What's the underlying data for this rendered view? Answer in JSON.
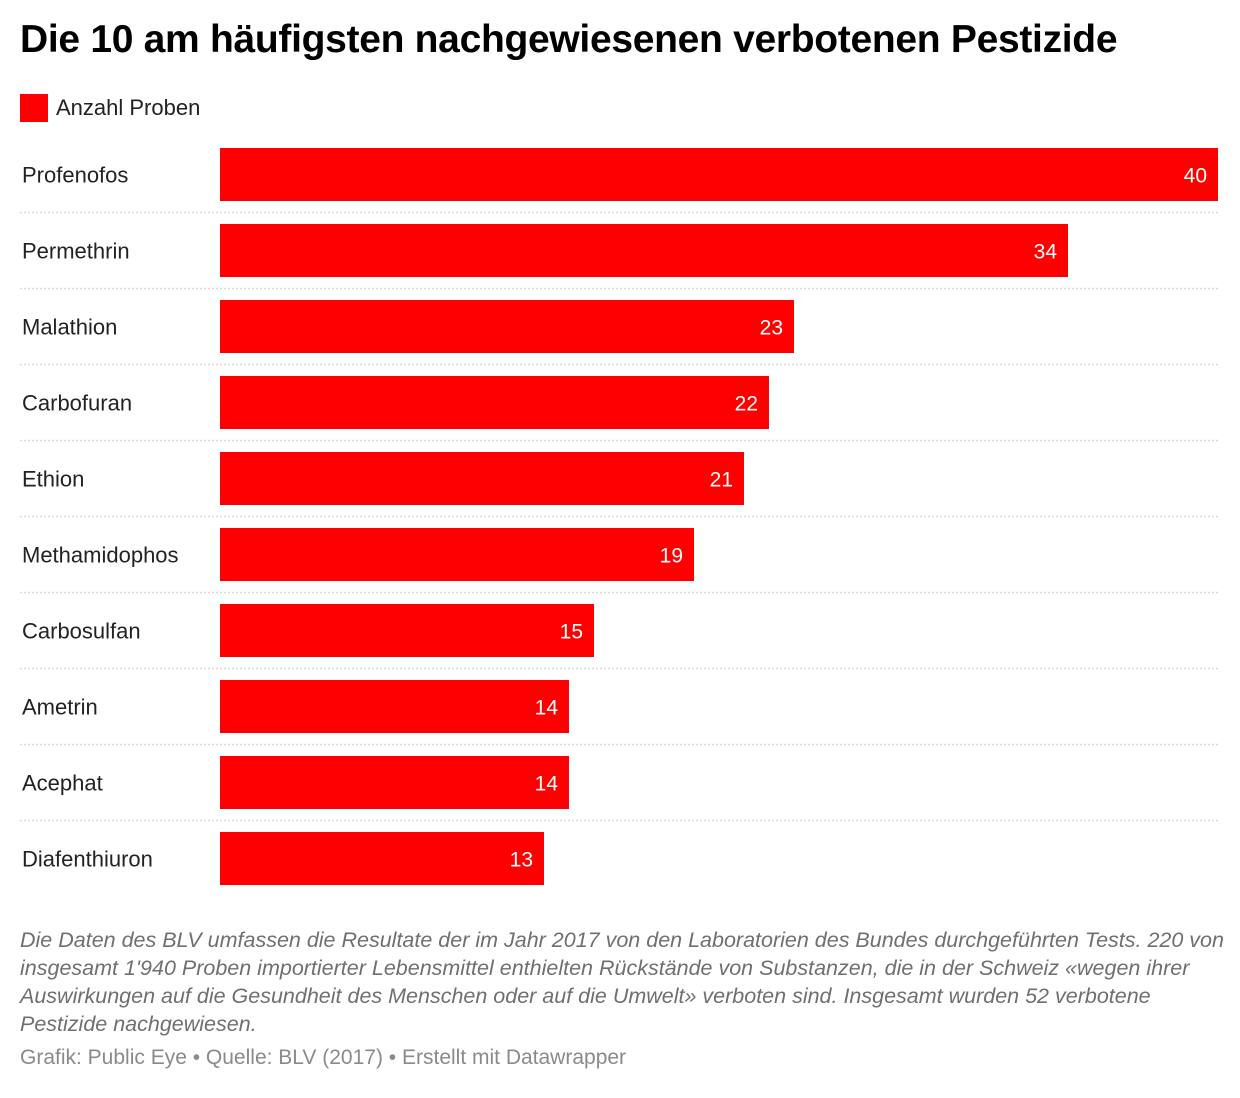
{
  "title": "Die 10 am häufigsten nachgewiesenen verbotenen Pestizide",
  "legend": {
    "label": "Anzahl Proben",
    "color": "#ff0000"
  },
  "colors": {
    "bar": "#ff0000",
    "value_label": "#ffffff",
    "separator": "#d9d9d9"
  },
  "chart_data": {
    "type": "bar",
    "orientation": "horizontal",
    "categories": [
      "Profenofos",
      "Permethrin",
      "Malathion",
      "Carbofuran",
      "Ethion",
      "Methamidophos",
      "Carbosulfan",
      "Ametrin",
      "Acephat",
      "Diafenthiuron"
    ],
    "series": [
      {
        "name": "Anzahl Proben",
        "values": [
          40,
          34,
          23,
          22,
          21,
          19,
          15,
          14,
          14,
          13
        ]
      }
    ],
    "xlim": [
      0,
      40
    ],
    "data_labels": true,
    "grid": false
  },
  "note": "Die Daten des BLV umfassen die Resultate der im Jahr 2017 von den Laboratorien des Bundes durchgeführten Tests. 220 von insgesamt 1'940 Proben importierter Lebensmittel enthielten Rückstände von Substanzen, die in der Schweiz «wegen ihrer Auswirkungen auf die Gesundheit des Menschen oder auf die Umwelt» verboten sind. Insgesamt wurden 52 verbotene Pestizide nachgewiesen.",
  "footer": "Grafik: Public Eye • Quelle: BLV (2017) • Erstellt mit Datawrapper"
}
